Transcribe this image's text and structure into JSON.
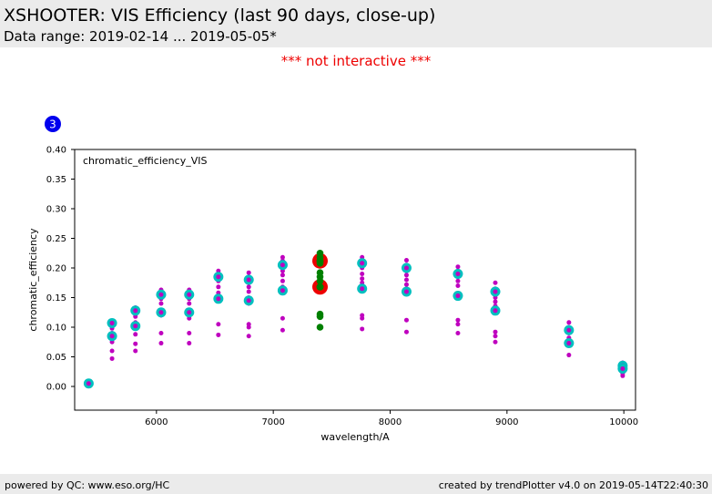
{
  "header": {
    "title": "XSHOOTER: VIS Efficiency (last 90 days, close-up)",
    "subtitle": "Data range: 2019-02-14 ... 2019-05-05*"
  },
  "notice": "*** not interactive ***",
  "badge": "3",
  "footer": {
    "left": "powered by QC: www.eso.org/HC",
    "right": "created by trendPlotter v4.0 on 2019-05-14T22:40:30"
  },
  "colors": {
    "header_bg": "#ebebeb",
    "notice": "#ee0000",
    "badge": "#0000ee",
    "cyan": "#00bfbf",
    "magenta": "#bf00bf",
    "red": "#ee0000",
    "green": "#008000"
  },
  "chart_data": {
    "type": "scatter",
    "annotation": "chromatic_efficiency_VIS",
    "xlabel": "wavelength/A",
    "ylabel": "chromatic_efficiency",
    "xlim": [
      5300,
      10100
    ],
    "ylim": [
      -0.04,
      0.4
    ],
    "xticks": [
      6000,
      7000,
      8000,
      9000,
      10000
    ],
    "yticks": [
      0.0,
      0.05,
      0.1,
      0.15,
      0.2,
      0.25,
      0.3,
      0.35,
      0.4
    ],
    "ytick_labels": [
      "0.00",
      "0.05",
      "0.10",
      "0.15",
      "0.20",
      "0.25",
      "0.30",
      "0.35",
      "0.40"
    ],
    "grid": false,
    "series": [
      {
        "marker": "small magenta dots",
        "color": "#bf00bf",
        "points": [
          [
            5620,
            0.105
          ],
          [
            5620,
            0.098
          ],
          [
            5620,
            0.09
          ],
          [
            5620,
            0.083
          ],
          [
            5620,
            0.075
          ],
          [
            5620,
            0.06
          ],
          [
            5620,
            0.047
          ],
          [
            5820,
            0.133
          ],
          [
            5820,
            0.125
          ],
          [
            5820,
            0.118
          ],
          [
            5820,
            0.108
          ],
          [
            5820,
            0.098
          ],
          [
            5820,
            0.088
          ],
          [
            5820,
            0.072
          ],
          [
            5820,
            0.06
          ],
          [
            6040,
            0.163
          ],
          [
            6040,
            0.155
          ],
          [
            6040,
            0.148
          ],
          [
            6040,
            0.14
          ],
          [
            6040,
            0.128
          ],
          [
            6040,
            0.12
          ],
          [
            6040,
            0.09
          ],
          [
            6040,
            0.073
          ],
          [
            6280,
            0.163
          ],
          [
            6280,
            0.155
          ],
          [
            6280,
            0.148
          ],
          [
            6280,
            0.14
          ],
          [
            6280,
            0.128
          ],
          [
            6280,
            0.115
          ],
          [
            6280,
            0.09
          ],
          [
            6280,
            0.073
          ],
          [
            6530,
            0.195
          ],
          [
            6530,
            0.188
          ],
          [
            6530,
            0.178
          ],
          [
            6530,
            0.168
          ],
          [
            6530,
            0.158
          ],
          [
            6530,
            0.145
          ],
          [
            6530,
            0.105
          ],
          [
            6530,
            0.087
          ],
          [
            6790,
            0.192
          ],
          [
            6790,
            0.185
          ],
          [
            6790,
            0.175
          ],
          [
            6790,
            0.168
          ],
          [
            6790,
            0.16
          ],
          [
            6790,
            0.15
          ],
          [
            6790,
            0.14
          ],
          [
            6790,
            0.105
          ],
          [
            6790,
            0.1
          ],
          [
            6790,
            0.085
          ],
          [
            7080,
            0.218
          ],
          [
            7080,
            0.212
          ],
          [
            7080,
            0.205
          ],
          [
            7080,
            0.195
          ],
          [
            7080,
            0.188
          ],
          [
            7080,
            0.178
          ],
          [
            7080,
            0.168
          ],
          [
            7080,
            0.16
          ],
          [
            7080,
            0.115
          ],
          [
            7080,
            0.095
          ],
          [
            7760,
            0.218
          ],
          [
            7760,
            0.21
          ],
          [
            7760,
            0.2
          ],
          [
            7760,
            0.19
          ],
          [
            7760,
            0.182
          ],
          [
            7760,
            0.175
          ],
          [
            7760,
            0.165
          ],
          [
            7760,
            0.12
          ],
          [
            7760,
            0.115
          ],
          [
            7760,
            0.097
          ],
          [
            8140,
            0.213
          ],
          [
            8140,
            0.205
          ],
          [
            8140,
            0.195
          ],
          [
            8140,
            0.188
          ],
          [
            8140,
            0.18
          ],
          [
            8140,
            0.172
          ],
          [
            8140,
            0.165
          ],
          [
            8140,
            0.158
          ],
          [
            8140,
            0.112
          ],
          [
            8140,
            0.092
          ],
          [
            8580,
            0.202
          ],
          [
            8580,
            0.195
          ],
          [
            8580,
            0.185
          ],
          [
            8580,
            0.178
          ],
          [
            8580,
            0.17
          ],
          [
            8580,
            0.155
          ],
          [
            8580,
            0.112
          ],
          [
            8580,
            0.105
          ],
          [
            8580,
            0.09
          ],
          [
            8900,
            0.175
          ],
          [
            8900,
            0.165
          ],
          [
            8900,
            0.158
          ],
          [
            8900,
            0.15
          ],
          [
            8900,
            0.143
          ],
          [
            8900,
            0.136
          ],
          [
            8900,
            0.125
          ],
          [
            8900,
            0.092
          ],
          [
            8900,
            0.085
          ],
          [
            8900,
            0.075
          ],
          [
            9530,
            0.108
          ],
          [
            9530,
            0.1
          ],
          [
            9530,
            0.09
          ],
          [
            9530,
            0.082
          ],
          [
            9530,
            0.07
          ],
          [
            9530,
            0.053
          ],
          [
            9990,
            0.04
          ],
          [
            9990,
            0.03
          ],
          [
            9990,
            0.022
          ],
          [
            9990,
            0.018
          ]
        ]
      },
      {
        "marker": "large cyan circles with magenta centre",
        "color": "#00bfbf",
        "points": [
          [
            5420,
            0.005
          ],
          [
            5620,
            0.107
          ],
          [
            5620,
            0.085
          ],
          [
            5820,
            0.128
          ],
          [
            5820,
            0.102
          ],
          [
            6040,
            0.155
          ],
          [
            6040,
            0.125
          ],
          [
            6280,
            0.155
          ],
          [
            6280,
            0.125
          ],
          [
            6530,
            0.185
          ],
          [
            6530,
            0.148
          ],
          [
            6790,
            0.18
          ],
          [
            6790,
            0.145
          ],
          [
            7080,
            0.205
          ],
          [
            7080,
            0.162
          ],
          [
            7760,
            0.208
          ],
          [
            7760,
            0.165
          ],
          [
            8140,
            0.2
          ],
          [
            8140,
            0.16
          ],
          [
            8580,
            0.19
          ],
          [
            8580,
            0.153
          ],
          [
            8900,
            0.16
          ],
          [
            8900,
            0.128
          ],
          [
            9530,
            0.095
          ],
          [
            9530,
            0.073
          ],
          [
            9990,
            0.035
          ],
          [
            9990,
            0.03
          ]
        ]
      },
      {
        "marker": "large red circles with green centre",
        "color": "#ee0000",
        "points": [
          [
            7400,
            0.212
          ],
          [
            7400,
            0.168
          ]
        ]
      },
      {
        "marker": "small green dots",
        "color": "#008000",
        "points": [
          [
            7400,
            0.225
          ],
          [
            7400,
            0.218
          ],
          [
            7400,
            0.208
          ],
          [
            7400,
            0.192
          ],
          [
            7400,
            0.185
          ],
          [
            7400,
            0.178
          ],
          [
            7400,
            0.122
          ],
          [
            7400,
            0.118
          ],
          [
            7400,
            0.1
          ]
        ]
      }
    ]
  }
}
